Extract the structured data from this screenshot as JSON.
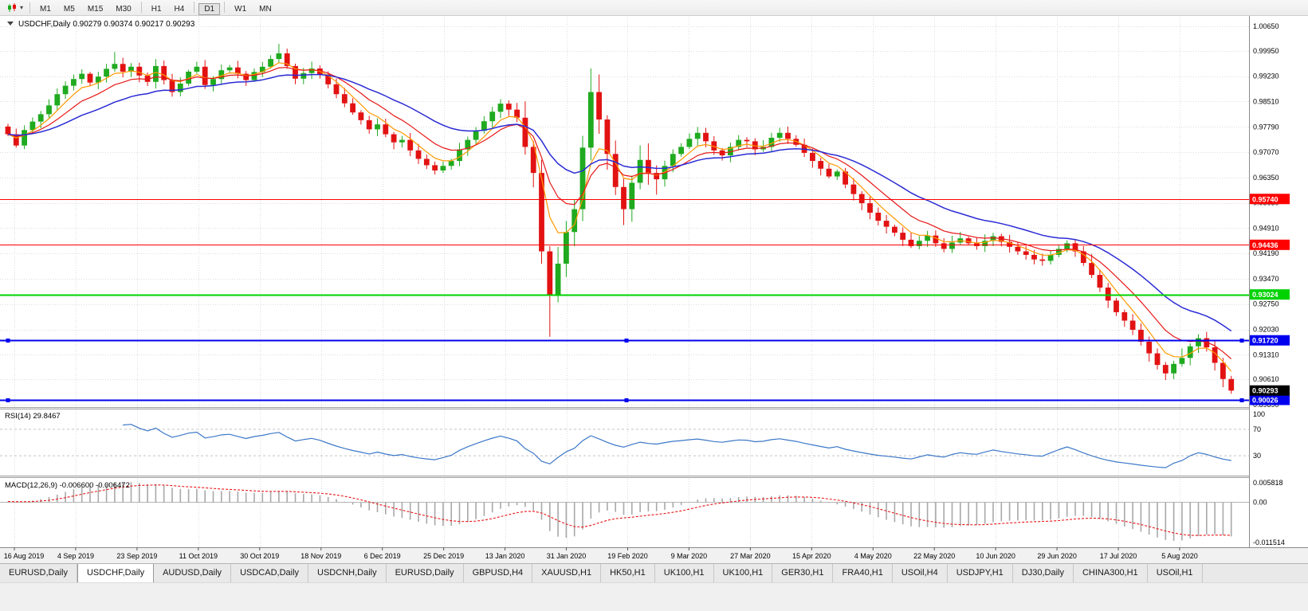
{
  "colors": {
    "bull": "#1faa1f",
    "bear": "#e21212",
    "ma_fast": "#ff9900",
    "ma_mid": "#e81717",
    "ma_slow": "#2b2bd5",
    "grid": "#dcdcdc",
    "axis_border": "#8a8a8a",
    "rsi_line": "#3c78c8",
    "macd_hist": "#a8a8a8",
    "macd_signal": "#e81717",
    "tag_current_bg": "#000000",
    "tag_current_fg": "#ffffff"
  },
  "toolbar": {
    "chart_type_icon": "candlestick-chart-icon",
    "dropdown_caret": "▾",
    "timeframes": [
      "M1",
      "M5",
      "M15",
      "M30",
      "H1",
      "H4",
      "D1",
      "W1",
      "MN"
    ],
    "active_timeframe": "D1",
    "group_breaks_after": [
      "M30",
      "H4",
      "D1"
    ]
  },
  "chart": {
    "collapse_icon": "triangle-down",
    "symbol_label": "USDCHF,Daily",
    "ohlc": {
      "open": "0.90279",
      "high": "0.90374",
      "low": "0.90217",
      "close": "0.90293"
    }
  },
  "chart_data": {
    "type": "candlestick",
    "symbol": "USDCHF",
    "timeframe": "Daily",
    "time_labels": [
      "16 Aug 2019",
      "4 Sep 2019",
      "23 Sep 2019",
      "11 Oct 2019",
      "30 Oct 2019",
      "18 Nov 2019",
      "6 Dec 2019",
      "25 Dec 2019",
      "13 Jan 2020",
      "31 Jan 2020",
      "19 Feb 2020",
      "9 Mar 2020",
      "27 Mar 2020",
      "15 Apr 2020",
      "4 May 2020",
      "22 May 2020",
      "10 Jun 2020",
      "29 Jun 2020",
      "17 Jul 2020",
      "5 Aug 2020"
    ],
    "price_axis": {
      "max": 1.00922,
      "min": 0.89822,
      "gridline_labels": [
        "1.00650",
        "0.99950",
        "0.99230",
        "0.98510",
        "0.97790",
        "0.97070",
        "0.96350",
        "0.95630",
        "0.94910",
        "0.94190",
        "0.93470",
        "0.92750",
        "0.92030",
        "0.91310",
        "0.90610",
        "0.89890"
      ]
    },
    "current_price": {
      "value": "0.90293"
    },
    "first_open": 0.978,
    "candles_close": [
      0.9758,
      0.9726,
      0.977,
      0.9794,
      0.9815,
      0.984,
      0.9872,
      0.9896,
      0.9915,
      0.993,
      0.9905,
      0.9922,
      0.9944,
      0.9958,
      0.9936,
      0.995,
      0.9925,
      0.9907,
      0.9952,
      0.9912,
      0.9878,
      0.9902,
      0.9936,
      0.995,
      0.9898,
      0.9915,
      0.994,
      0.9948,
      0.993,
      0.9912,
      0.9935,
      0.995,
      0.9972,
      0.9988,
      0.9952,
      0.9916,
      0.9932,
      0.9945,
      0.9928,
      0.99,
      0.9872,
      0.9846,
      0.982,
      0.9798,
      0.9772,
      0.9786,
      0.9758,
      0.9735,
      0.9742,
      0.9712,
      0.9688,
      0.967,
      0.9655,
      0.9668,
      0.9682,
      0.9715,
      0.9742,
      0.9768,
      0.9795,
      0.9822,
      0.9845,
      0.9828,
      0.9805,
      0.9722,
      0.9648,
      0.9425,
      0.9302,
      0.939,
      0.948,
      0.9545,
      0.972,
      0.9878,
      0.98,
      0.9702,
      0.9608,
      0.9545,
      0.962,
      0.9685,
      0.9648,
      0.963,
      0.9668,
      0.9702,
      0.9722,
      0.9745,
      0.9762,
      0.9738,
      0.9712,
      0.9698,
      0.9722,
      0.9742,
      0.9738,
      0.9715,
      0.9722,
      0.9748,
      0.9762,
      0.9745,
      0.9728,
      0.9705,
      0.9682,
      0.966,
      0.9638,
      0.9652,
      0.9615,
      0.9588,
      0.9562,
      0.9535,
      0.9512,
      0.9495,
      0.9478,
      0.9458,
      0.944,
      0.9455,
      0.947,
      0.9448,
      0.9432,
      0.945,
      0.9462,
      0.9448,
      0.944,
      0.9455,
      0.9468,
      0.9452,
      0.9438,
      0.9425,
      0.9415,
      0.9402,
      0.9398,
      0.9415,
      0.9432,
      0.9448,
      0.9425,
      0.9392,
      0.9358,
      0.9322,
      0.9285,
      0.9252,
      0.9228,
      0.9202,
      0.9168,
      0.9135,
      0.9102,
      0.9078,
      0.9105,
      0.9122,
      0.9155,
      0.9178,
      0.9152,
      0.9108,
      0.9062,
      0.9029
    ],
    "wick_overrides": {
      "13": {
        "h": 0.9992
      },
      "33": {
        "h": 1.0015
      },
      "65": {
        "l": 0.939
      },
      "66": {
        "l": 0.9182
      },
      "71": {
        "h": 0.9945
      },
      "72": {
        "h": 0.9928
      },
      "149": {
        "l": 0.902
      }
    },
    "moving_averages": [
      {
        "name": "EMA fast",
        "period": 5,
        "color_key": "ma_fast"
      },
      {
        "name": "EMA medium",
        "period": 10,
        "color_key": "ma_mid"
      },
      {
        "name": "EMA slow",
        "period": 22,
        "color_key": "ma_slow"
      }
    ],
    "horizontal_lines": [
      {
        "price": 0.9574,
        "label": "0.95740",
        "color": "#ff0000",
        "width": 1,
        "handles": false
      },
      {
        "price": 0.94436,
        "label": "0.94436",
        "color": "#ff0000",
        "width": 1,
        "handles": false
      },
      {
        "price": 0.93024,
        "label": "0.93024",
        "color": "#00d200",
        "width": 2,
        "handles": false
      },
      {
        "price": 0.9172,
        "label": "0.91720",
        "color": "#0000ee",
        "width": 2,
        "handles": true
      },
      {
        "price": 0.90026,
        "label": "0.90026",
        "color": "#0000ee",
        "width": 2,
        "handles": true
      }
    ],
    "rsi": {
      "label": "RSI(14)",
      "value": "29.8467",
      "period": 14,
      "levels": [
        70,
        30
      ],
      "scale_labels": [
        "100",
        "70",
        "30"
      ]
    },
    "macd": {
      "label": "MACD(12,26,9)",
      "main_value": "-0.006600",
      "signal_value": "-0.006472",
      "fast": 12,
      "slow": 26,
      "signal": 9,
      "scale_max": 0.005818,
      "scale_min": -0.011514,
      "scale_max_label": "0.005818",
      "zero_label": "0.00",
      "scale_min_label": "-0.011514"
    }
  },
  "tabs": {
    "items": [
      {
        "label": "EURUSD,Daily",
        "active": false
      },
      {
        "label": "USDCHF,Daily",
        "active": true
      },
      {
        "label": "AUDUSD,Daily",
        "active": false
      },
      {
        "label": "USDCAD,Daily",
        "active": false
      },
      {
        "label": "USDCNH,Daily",
        "active": false
      },
      {
        "label": "EURUSD,Daily",
        "active": false
      },
      {
        "label": "GBPUSD,H4",
        "active": false
      },
      {
        "label": "XAUUSD,H1",
        "active": false
      },
      {
        "label": "HK50,H1",
        "active": false
      },
      {
        "label": "UK100,H1",
        "active": false
      },
      {
        "label": "UK100,H1",
        "active": false
      },
      {
        "label": "GER30,H1",
        "active": false
      },
      {
        "label": "FRA40,H1",
        "active": false
      },
      {
        "label": "USOil,H4",
        "active": false
      },
      {
        "label": "USDJPY,H1",
        "active": false
      },
      {
        "label": "DJ30,Daily",
        "active": false
      },
      {
        "label": "CHINA300,H1",
        "active": false
      },
      {
        "label": "USOil,H1",
        "active": false
      }
    ]
  }
}
